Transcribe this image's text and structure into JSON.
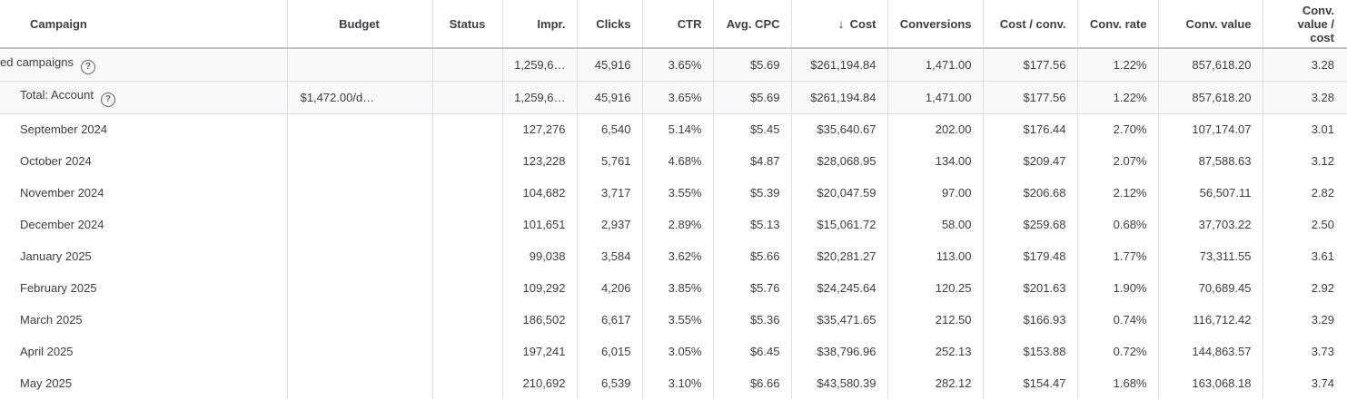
{
  "table": {
    "sort_icon": "↓",
    "help_icon": "?",
    "colors": {
      "total_row_bg": "#f8f9fa",
      "grid_border": "#e0e0e0",
      "header_underline": "#bfc3c7",
      "text": "#3c4043",
      "help_icon": "#5f6368"
    },
    "columns": [
      {
        "key": "campaign",
        "label": "Campaign"
      },
      {
        "key": "budget",
        "label": "Budget"
      },
      {
        "key": "status",
        "label": "Status"
      },
      {
        "key": "impr",
        "label": "Impr."
      },
      {
        "key": "clicks",
        "label": "Clicks"
      },
      {
        "key": "ctr",
        "label": "CTR"
      },
      {
        "key": "avg_cpc",
        "label": "Avg. CPC"
      },
      {
        "key": "cost",
        "label": "Cost",
        "sorted": "descending"
      },
      {
        "key": "conversions",
        "label": "Conversions"
      },
      {
        "key": "cost_per_conv",
        "label": "Cost / conv."
      },
      {
        "key": "conv_rate",
        "label": "Conv. rate"
      },
      {
        "key": "conv_value",
        "label": "Conv. value"
      },
      {
        "key": "conv_value_per_cost",
        "label": "Conv.\nvalue /\ncost"
      }
    ],
    "rows": [
      {
        "type": "total",
        "clipped": true,
        "help": true,
        "campaign": "ed campaigns",
        "budget": "",
        "status": "",
        "impr": "1,259,6…",
        "clicks": "45,916",
        "ctr": "3.65%",
        "avg_cpc": "$5.69",
        "cost": "$261,194.84",
        "conversions": "1,471.00",
        "cost_per_conv": "$177.56",
        "conv_rate": "1.22%",
        "conv_value": "857,618.20",
        "conv_value_per_cost": "3.28"
      },
      {
        "type": "total",
        "help": true,
        "campaign": "Total: Account",
        "budget": "$1,472.00/d…",
        "status": "",
        "impr": "1,259,6…",
        "clicks": "45,916",
        "ctr": "3.65%",
        "avg_cpc": "$5.69",
        "cost": "$261,194.84",
        "conversions": "1,471.00",
        "cost_per_conv": "$177.56",
        "conv_rate": "1.22%",
        "conv_value": "857,618.20",
        "conv_value_per_cost": "3.28"
      },
      {
        "type": "month",
        "campaign": "September 2024",
        "budget": "",
        "status": "",
        "impr": "127,276",
        "clicks": "6,540",
        "ctr": "5.14%",
        "avg_cpc": "$5.45",
        "cost": "$35,640.67",
        "conversions": "202.00",
        "cost_per_conv": "$176.44",
        "conv_rate": "2.70%",
        "conv_value": "107,174.07",
        "conv_value_per_cost": "3.01"
      },
      {
        "type": "month",
        "campaign": "October 2024",
        "budget": "",
        "status": "",
        "impr": "123,228",
        "clicks": "5,761",
        "ctr": "4.68%",
        "avg_cpc": "$4.87",
        "cost": "$28,068.95",
        "conversions": "134.00",
        "cost_per_conv": "$209.47",
        "conv_rate": "2.07%",
        "conv_value": "87,588.63",
        "conv_value_per_cost": "3.12"
      },
      {
        "type": "month",
        "campaign": "November 2024",
        "budget": "",
        "status": "",
        "impr": "104,682",
        "clicks": "3,717",
        "ctr": "3.55%",
        "avg_cpc": "$5.39",
        "cost": "$20,047.59",
        "conversions": "97.00",
        "cost_per_conv": "$206.68",
        "conv_rate": "2.12%",
        "conv_value": "56,507.11",
        "conv_value_per_cost": "2.82"
      },
      {
        "type": "month",
        "campaign": "December 2024",
        "budget": "",
        "status": "",
        "impr": "101,651",
        "clicks": "2,937",
        "ctr": "2.89%",
        "avg_cpc": "$5.13",
        "cost": "$15,061.72",
        "conversions": "58.00",
        "cost_per_conv": "$259.68",
        "conv_rate": "0.68%",
        "conv_value": "37,703.22",
        "conv_value_per_cost": "2.50"
      },
      {
        "type": "month",
        "campaign": "January 2025",
        "budget": "",
        "status": "",
        "impr": "99,038",
        "clicks": "3,584",
        "ctr": "3.62%",
        "avg_cpc": "$5.66",
        "cost": "$20,281.27",
        "conversions": "113.00",
        "cost_per_conv": "$179.48",
        "conv_rate": "1.77%",
        "conv_value": "73,311.55",
        "conv_value_per_cost": "3.61"
      },
      {
        "type": "month",
        "campaign": "February 2025",
        "budget": "",
        "status": "",
        "impr": "109,292",
        "clicks": "4,206",
        "ctr": "3.85%",
        "avg_cpc": "$5.76",
        "cost": "$24,245.64",
        "conversions": "120.25",
        "cost_per_conv": "$201.63",
        "conv_rate": "1.90%",
        "conv_value": "70,689.45",
        "conv_value_per_cost": "2.92"
      },
      {
        "type": "month",
        "campaign": "March 2025",
        "budget": "",
        "status": "",
        "impr": "186,502",
        "clicks": "6,617",
        "ctr": "3.55%",
        "avg_cpc": "$5.36",
        "cost": "$35,471.65",
        "conversions": "212.50",
        "cost_per_conv": "$166.93",
        "conv_rate": "0.74%",
        "conv_value": "116,712.42",
        "conv_value_per_cost": "3.29"
      },
      {
        "type": "month",
        "campaign": "April 2025",
        "budget": "",
        "status": "",
        "impr": "197,241",
        "clicks": "6,015",
        "ctr": "3.05%",
        "avg_cpc": "$6.45",
        "cost": "$38,796.96",
        "conversions": "252.13",
        "cost_per_conv": "$153.88",
        "conv_rate": "0.72%",
        "conv_value": "144,863.57",
        "conv_value_per_cost": "3.73"
      },
      {
        "type": "month",
        "campaign": "May 2025",
        "budget": "",
        "status": "",
        "impr": "210,692",
        "clicks": "6,539",
        "ctr": "3.10%",
        "avg_cpc": "$6.66",
        "cost": "$43,580.39",
        "conversions": "282.12",
        "cost_per_conv": "$154.47",
        "conv_rate": "1.68%",
        "conv_value": "163,068.18",
        "conv_value_per_cost": "3.74"
      }
    ]
  }
}
